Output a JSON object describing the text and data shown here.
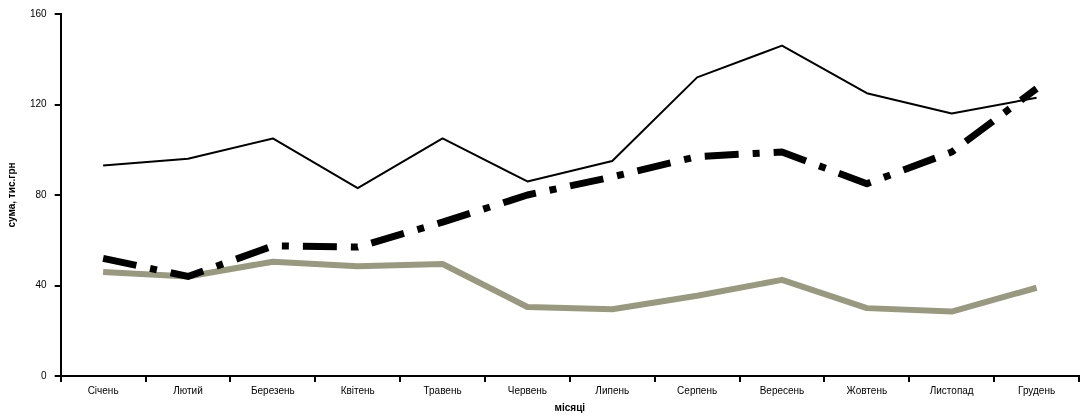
{
  "chart_data": {
    "type": "line",
    "xlabel": "місяці",
    "ylabel": "сума, тис.грн",
    "categories": [
      "Січень",
      "Лютий",
      "Березень",
      "Квітень",
      "Травень",
      "Червень",
      "Липень",
      "Серпень",
      "Вересень",
      "Жовтень",
      "Листопад",
      "Грудень"
    ],
    "series": [
      {
        "color": "#000000",
        "line_style": "solid",
        "values": [
          93,
          96,
          105,
          83,
          105,
          86,
          95,
          132,
          146,
          125,
          116,
          123
        ]
      },
      {
        "color": "#000000",
        "line_style": "dashed",
        "values": [
          52,
          44,
          57.5,
          57,
          68,
          80,
          88,
          97,
          99,
          85,
          99,
          127
        ]
      },
      {
        "color": "#999980",
        "line_style": "solid",
        "values": [
          46,
          44,
          50.5,
          48.5,
          49.5,
          30.5,
          29.5,
          35.5,
          42.5,
          30,
          28.5,
          39
        ]
      }
    ],
    "ylim": [
      0,
      160
    ],
    "yticks": [
      0,
      40,
      80,
      120,
      160
    ],
    "grid": false,
    "legend": false,
    "marker": "none"
  }
}
